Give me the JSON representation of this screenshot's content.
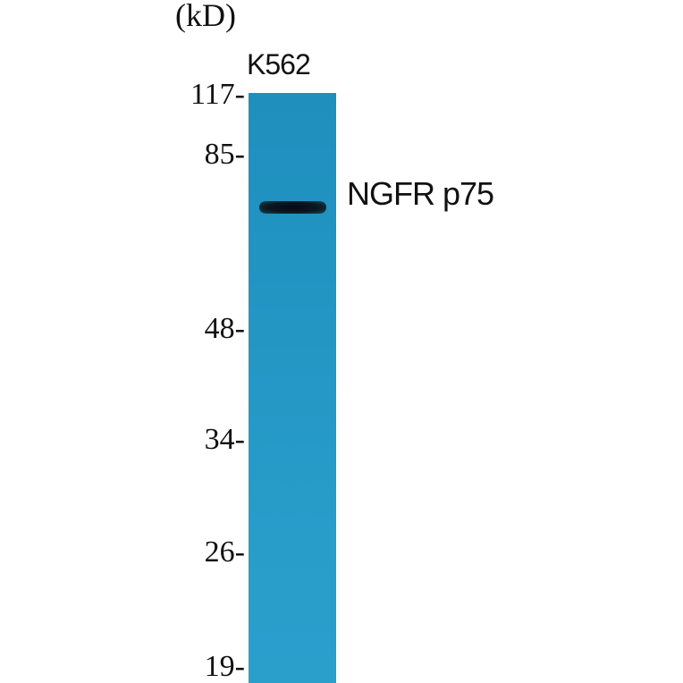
{
  "unit_label": "(kD)",
  "sample_label": "K562",
  "protein_label": "NGFR p75",
  "lane_color": "#2396c4",
  "band_color": "#0b1820",
  "markers": [
    {
      "label": "117-"
    },
    {
      "label": "85-"
    },
    {
      "label": "48-"
    },
    {
      "label": "34-"
    },
    {
      "label": "26-"
    },
    {
      "label": "19-"
    }
  ]
}
